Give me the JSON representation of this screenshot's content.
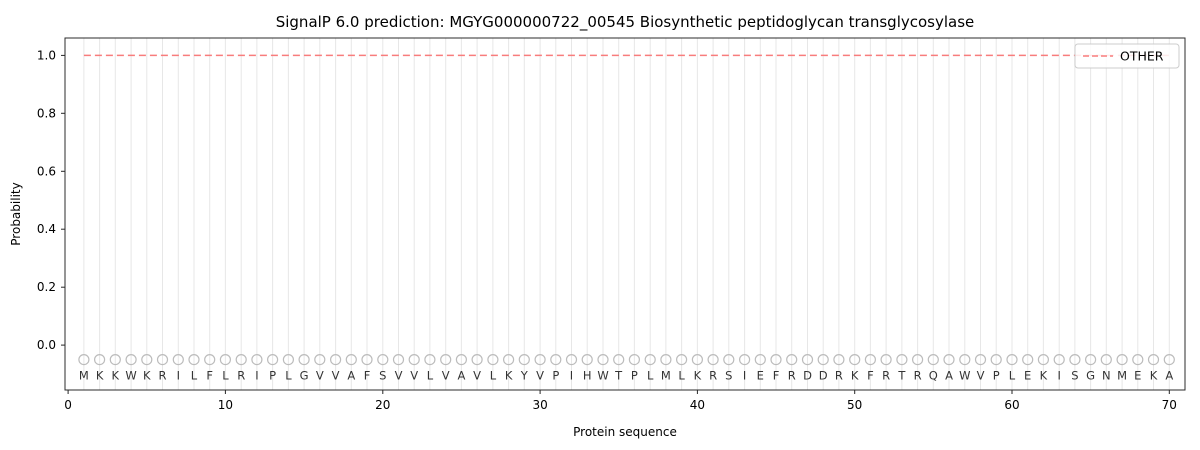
{
  "chart_data": {
    "type": "line",
    "title": "SignalP 6.0 prediction: MGYG000000722_00545 Biosynthetic peptidoglycan transglycosylase",
    "xlabel": "Protein sequence",
    "ylabel": "Probability",
    "xlim": [
      -0.2,
      71
    ],
    "ylim": [
      -0.155,
      1.06
    ],
    "x_ticks": [
      0,
      10,
      20,
      30,
      40,
      50,
      60,
      70
    ],
    "y_ticks": [
      0.0,
      0.2,
      0.4,
      0.6,
      0.8,
      1.0
    ],
    "grid": true,
    "sequence": [
      "M",
      "K",
      "K",
      "W",
      "K",
      "R",
      "I",
      "L",
      "F",
      "L",
      "R",
      "I",
      "P",
      "L",
      "G",
      "V",
      "V",
      "A",
      "F",
      "S",
      "V",
      "V",
      "L",
      "V",
      "A",
      "V",
      "L",
      "K",
      "Y",
      "V",
      "P",
      "I",
      "H",
      "W",
      "T",
      "P",
      "L",
      "M",
      "L",
      "K",
      "R",
      "S",
      "I",
      "E",
      "F",
      "R",
      "D",
      "D",
      "R",
      "K",
      "F",
      "R",
      "T",
      "R",
      "Q",
      "A",
      "W",
      "V",
      "P",
      "L",
      "E",
      "K",
      "I",
      "S",
      "G",
      "N",
      "M",
      "E",
      "K",
      "A"
    ],
    "series": [
      {
        "name": "OTHER",
        "style": "dashed",
        "constant_value": 1.0
      }
    ],
    "legend": {
      "position": "upper right",
      "entries": [
        "OTHER"
      ]
    },
    "marker_y": -0.05,
    "letter_y": -0.105,
    "colors": {
      "other_line": "#f87c7c",
      "grid": "#e7e7e7",
      "frame": "#2b2b2b",
      "marker": "#bcbcbc",
      "letter": "#333333",
      "tick": "#262626",
      "tick_label": "#000000",
      "legend_border": "#cccccc",
      "legend_bg": "#ffffff"
    }
  }
}
